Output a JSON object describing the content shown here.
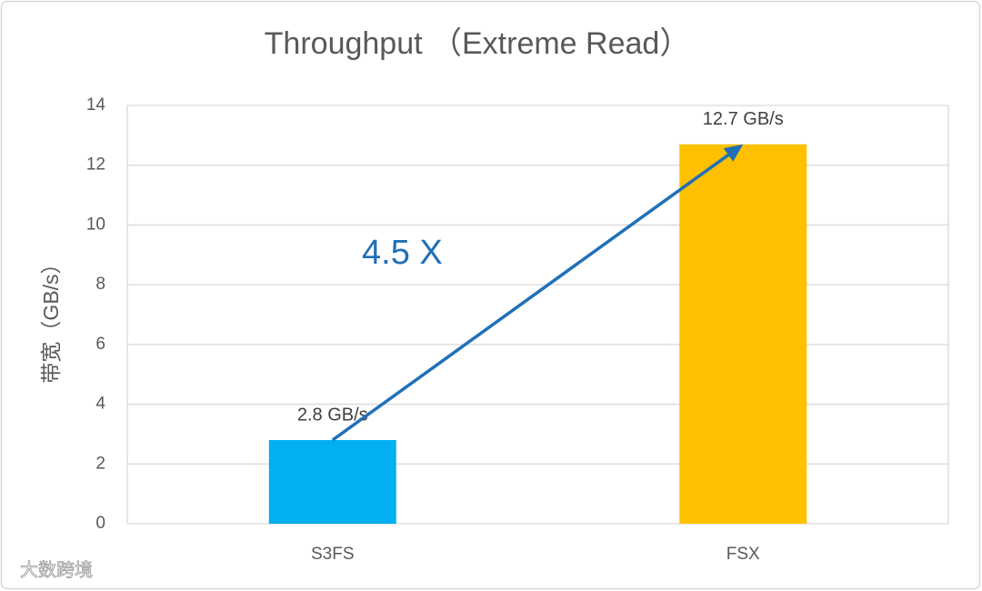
{
  "chart_data": {
    "type": "bar",
    "title": "Throughput （Extreme Read）",
    "ylabel": "带宽（GB/s）",
    "categories": [
      "S3FS",
      "FSX"
    ],
    "values": [
      2.8,
      12.7
    ],
    "value_labels": [
      "2.8 GB/s",
      "12.7 GB/s"
    ],
    "colors": [
      "#00b0f0",
      "#ffc000"
    ],
    "annotation": "4.5 X",
    "annotation_color": "#1f70b8",
    "ylim": [
      0,
      14
    ],
    "yticks": [
      0,
      2,
      4,
      6,
      8,
      10,
      12,
      14
    ],
    "grid": true
  },
  "watermark": "大数跨境"
}
